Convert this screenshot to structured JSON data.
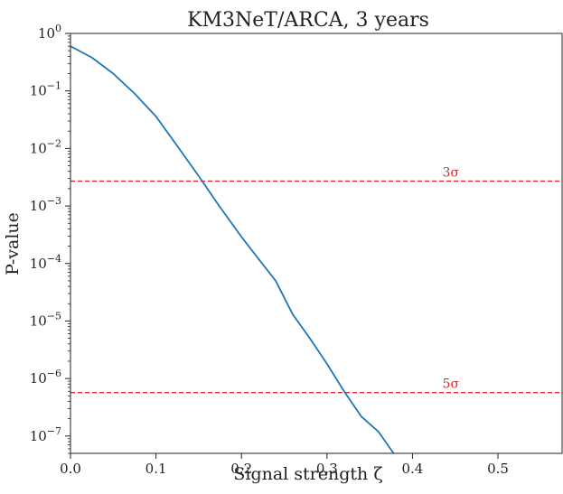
{
  "chart_data": {
    "type": "line",
    "title": "KM3NeT/ARCA, 3 years",
    "xlabel": "Signal strength ζ",
    "ylabel": "P-value",
    "xlim": [
      0.0,
      0.575
    ],
    "ylim": [
      5e-08,
      1.0
    ],
    "yscale": "log",
    "grid": false,
    "x_ticks": [
      {
        "value": 0.0,
        "label": "0.0"
      },
      {
        "value": 0.1,
        "label": "0.1"
      },
      {
        "value": 0.2,
        "label": "0.2"
      },
      {
        "value": 0.3,
        "label": "0.3"
      },
      {
        "value": 0.4,
        "label": "0.4"
      },
      {
        "value": 0.5,
        "label": "0.5"
      }
    ],
    "y_ticks": [
      {
        "value": 1.0,
        "base": "10",
        "exp": "0"
      },
      {
        "value": 0.1,
        "base": "10",
        "exp": "−1"
      },
      {
        "value": 0.01,
        "base": "10",
        "exp": "−2"
      },
      {
        "value": 0.001,
        "base": "10",
        "exp": "−3"
      },
      {
        "value": 0.0001,
        "base": "10",
        "exp": "−4"
      },
      {
        "value": 1e-05,
        "base": "10",
        "exp": "−5"
      },
      {
        "value": 1e-06,
        "base": "10",
        "exp": "−6"
      },
      {
        "value": 1e-07,
        "base": "10",
        "exp": "−7"
      }
    ],
    "series": [
      {
        "color": "#1f77b4",
        "x": [
          0.0,
          0.025,
          0.05,
          0.075,
          0.1,
          0.125,
          0.15,
          0.175,
          0.2,
          0.22,
          0.24,
          0.26,
          0.28,
          0.3,
          0.32,
          0.34,
          0.36,
          0.378
        ],
        "y": [
          0.6,
          0.38,
          0.2,
          0.09,
          0.036,
          0.011,
          0.0033,
          0.00095,
          0.00029,
          0.00012,
          5e-05,
          1.3e-05,
          5e-06,
          1.8e-06,
          6e-07,
          2.2e-07,
          1.2e-07,
          5e-08
        ]
      }
    ],
    "reference_lines": [
      {
        "y": 0.0027,
        "label": "3σ",
        "label_x": 0.435,
        "color": "#d62728",
        "style": "dashed"
      },
      {
        "y": 5.7e-07,
        "label": "5σ",
        "label_x": 0.435,
        "color": "#d62728",
        "style": "dashed"
      }
    ]
  }
}
